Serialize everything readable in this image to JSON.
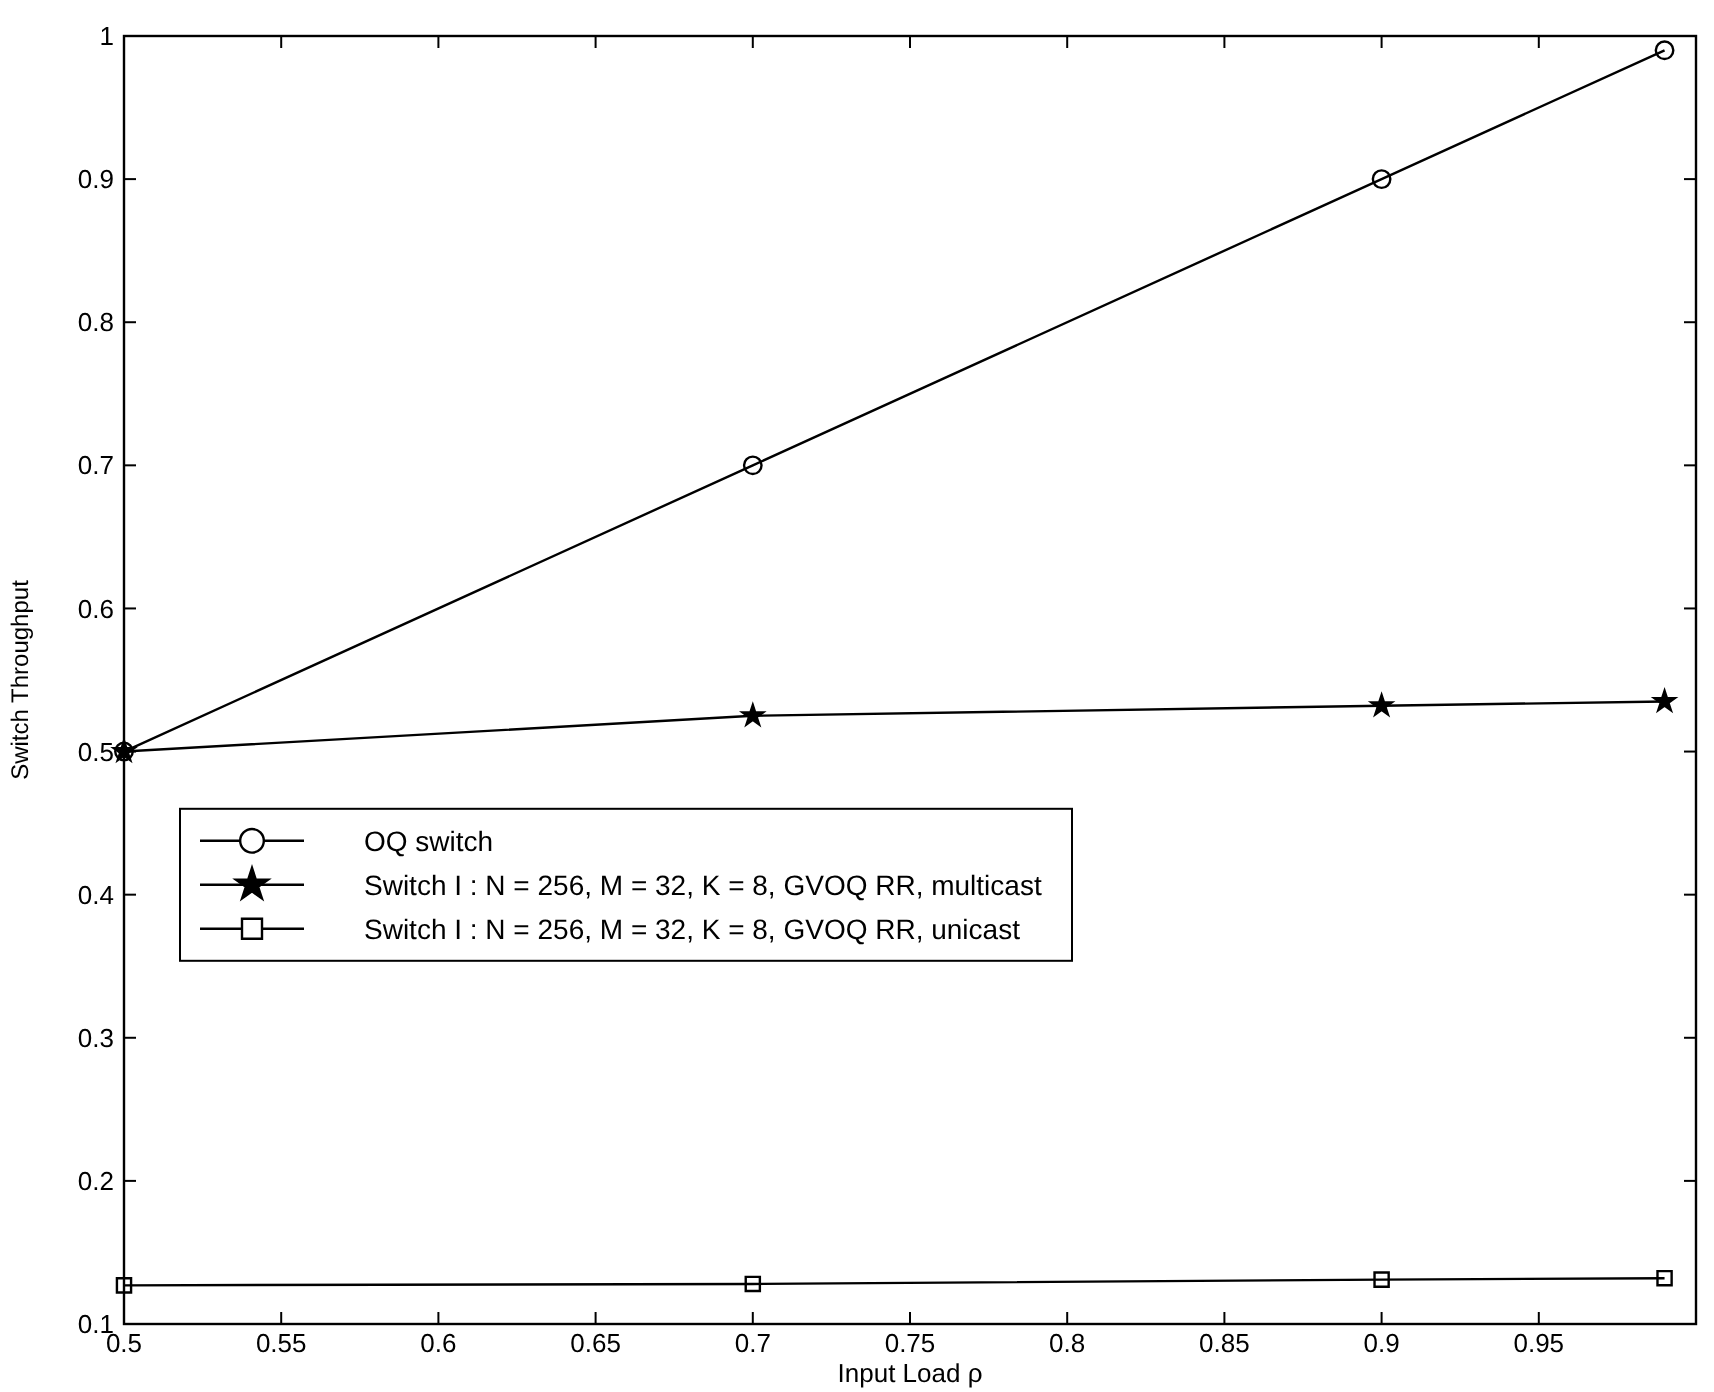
{
  "chart_data": {
    "type": "line",
    "xlabel": "Input Load ρ",
    "ylabel": "Switch Throughput",
    "xlim": [
      0.5,
      1
    ],
    "xticks": [
      0.5,
      0.55,
      0.6,
      0.65,
      0.7,
      0.75,
      0.8,
      0.85,
      0.9,
      0.95
    ],
    "ylim": [
      0.1,
      1
    ],
    "yticks": [
      0.1,
      0.2,
      0.3,
      0.4,
      0.5,
      0.6,
      0.7,
      0.8,
      0.9,
      1
    ],
    "x": [
      0.5,
      0.7,
      0.9,
      0.99
    ],
    "grid": false,
    "legend": "left",
    "line_style": "solid",
    "series": [
      {
        "name": "OQ switch",
        "color": "#000000",
        "marker": "circle",
        "values": [
          0.5,
          0.7,
          0.9,
          0.99
        ]
      },
      {
        "name": "Switch I : N = 256, M = 32, K = 8, GVOQ RR, multicast",
        "color": "#000000",
        "marker": "star",
        "values": [
          0.5,
          0.525,
          0.532,
          0.535
        ]
      },
      {
        "name": "Switch I : N = 256, M = 32, K = 8, GVOQ RR, unicast",
        "color": "#000000",
        "marker": "square",
        "values": [
          0.127,
          0.128,
          0.131,
          0.132
        ]
      }
    ]
  }
}
